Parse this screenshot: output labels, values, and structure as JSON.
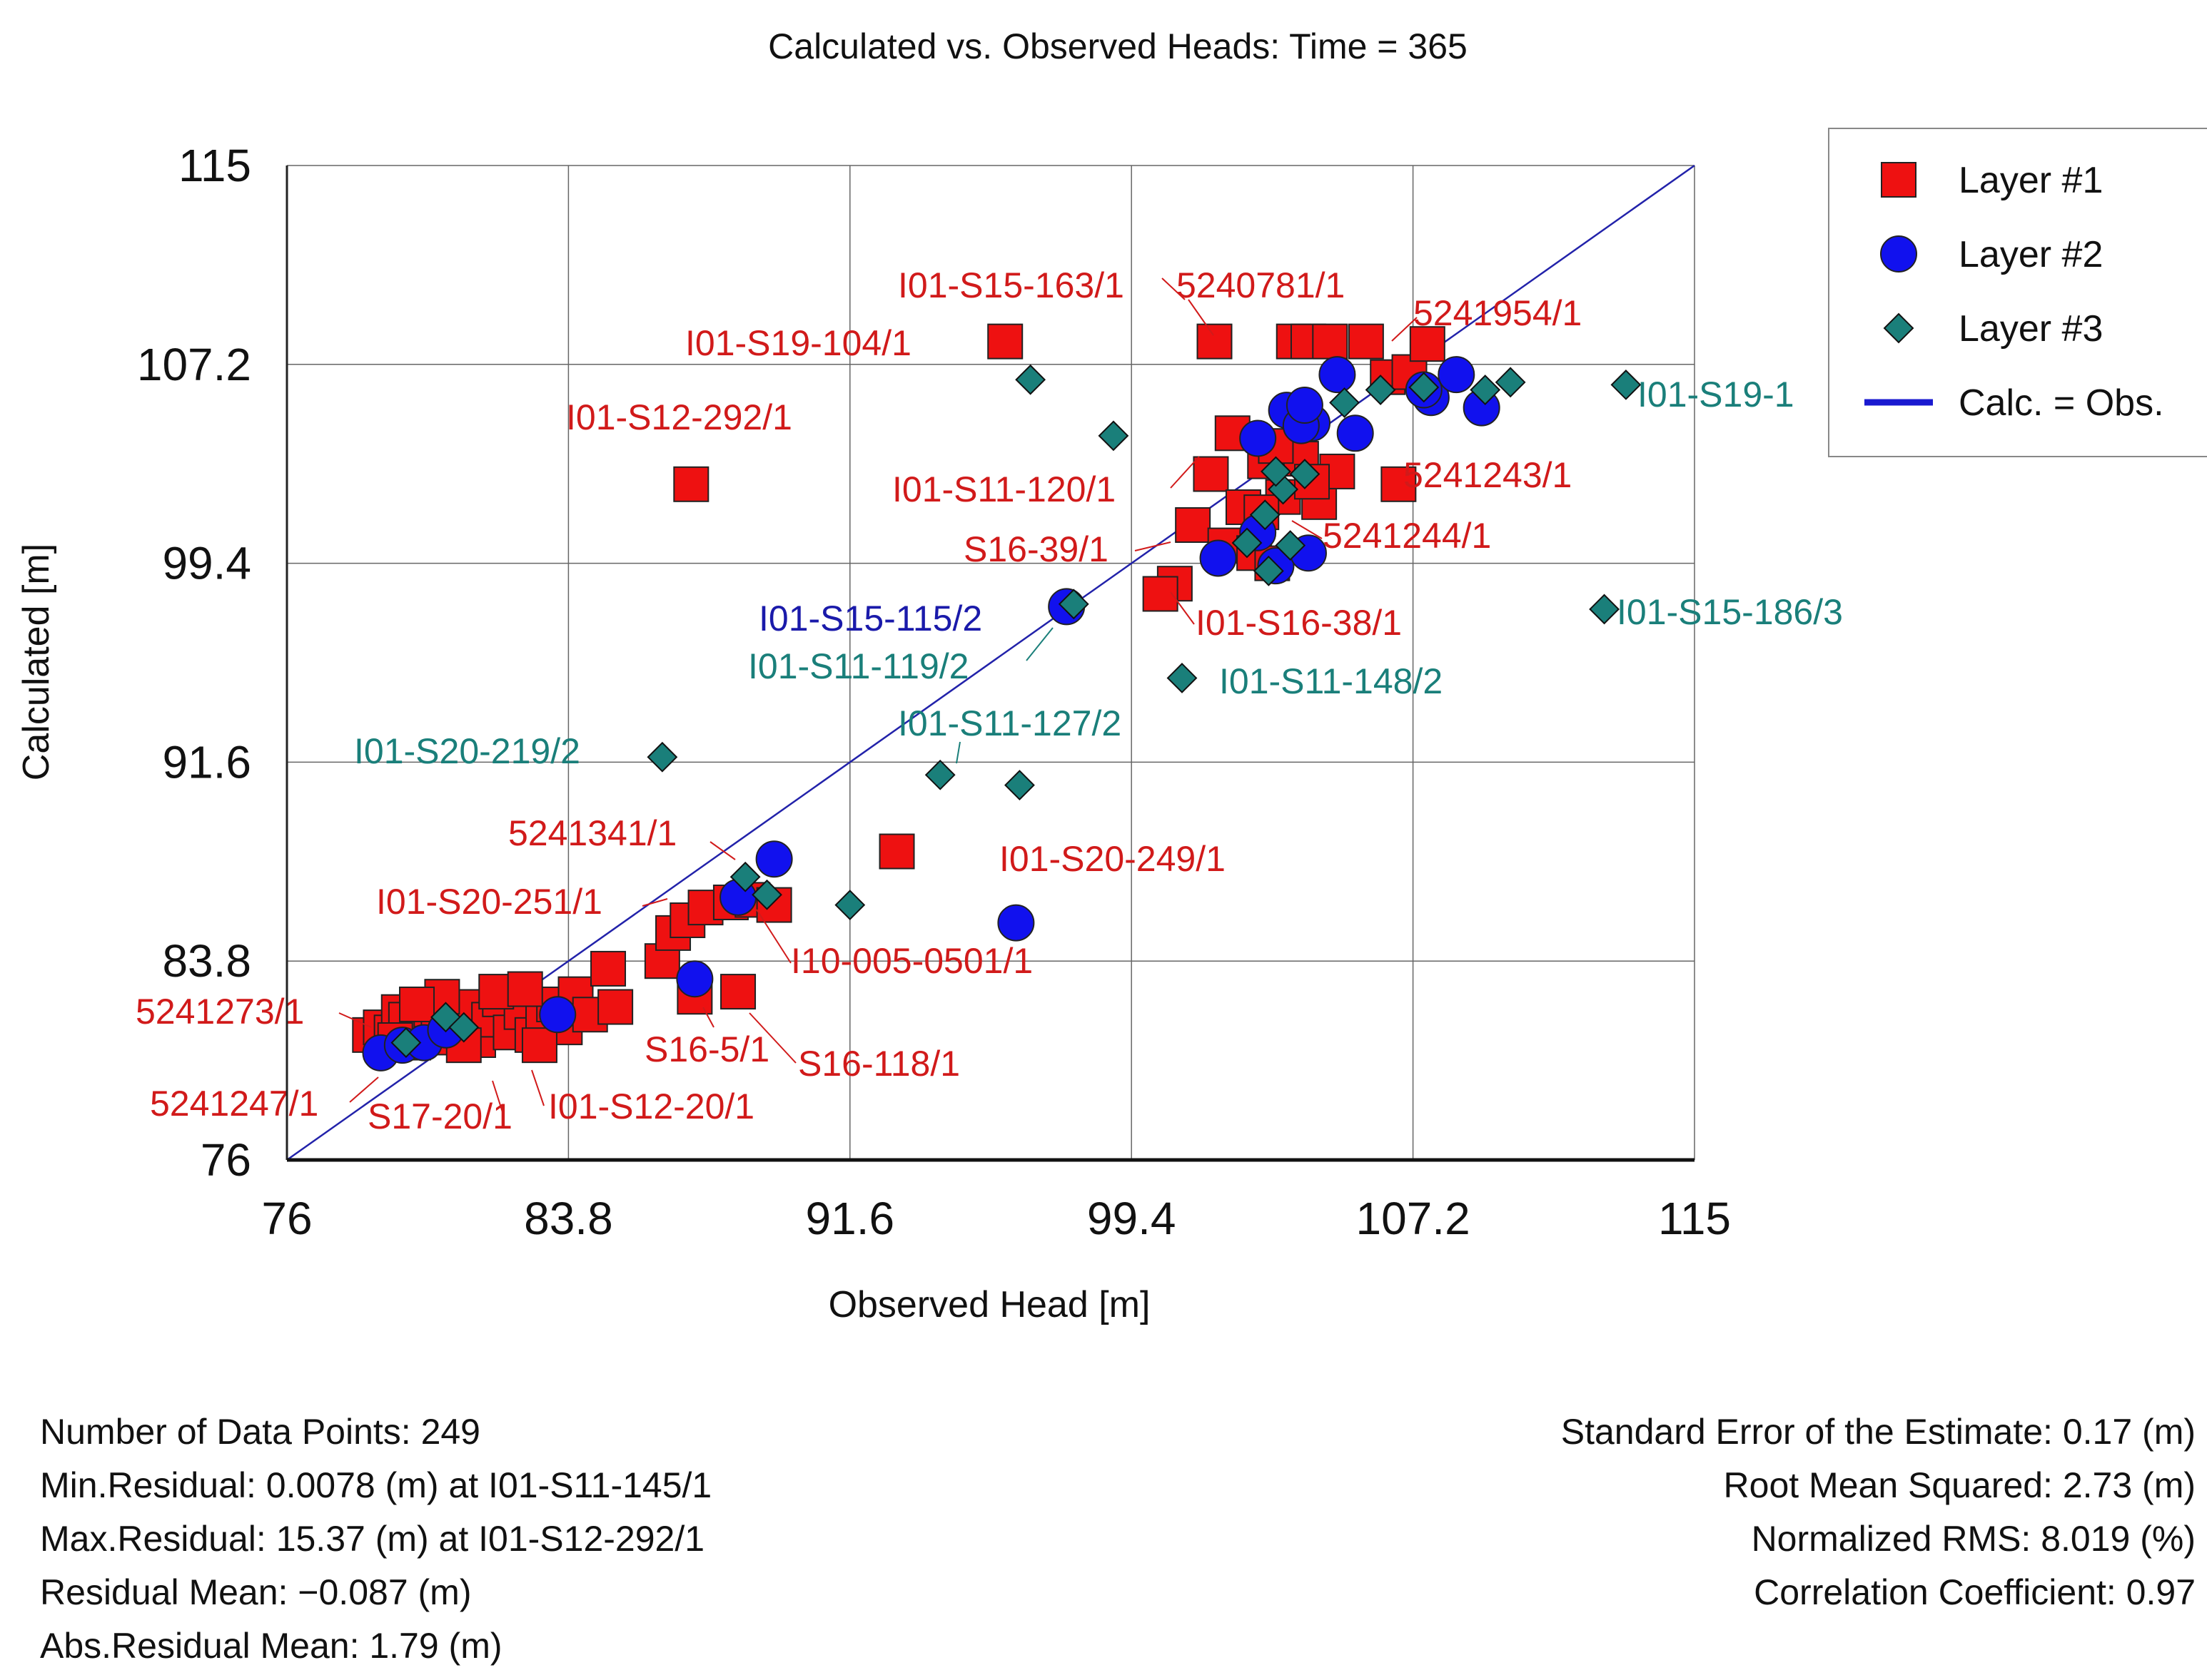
{
  "chart_data": {
    "type": "scatter",
    "title": "Calculated vs. Observed Heads: Time = 365",
    "xlabel": "Observed Head [m]",
    "ylabel": "Calculated [m]",
    "xlim": [
      76,
      115
    ],
    "ylim": [
      76,
      115
    ],
    "ticks": [
      "76",
      "83.8",
      "91.6",
      "99.4",
      "107.2",
      "115"
    ],
    "tick_values": [
      76,
      83.8,
      91.6,
      99.4,
      107.2,
      115
    ],
    "grid": true,
    "legend_position": "top-right",
    "legend": [
      {
        "label": "Layer #1",
        "marker": "square"
      },
      {
        "label": "Layer #2",
        "marker": "circle"
      },
      {
        "label": "Layer #3",
        "marker": "diamond"
      },
      {
        "label": "Calc. = Obs.",
        "marker": "line"
      }
    ],
    "colors": {
      "layer1": "#ee1111",
      "layer2": "#1111ee",
      "layer3": "#1a7f7a",
      "line": "#2222aa",
      "label1": "#d11a1a",
      "label2": "#1a1aaa",
      "label3": "#1a7f7a"
    },
    "series": [
      {
        "name": "Layer #1",
        "marker": "square",
        "points": [
          [
            78.3,
            80.9
          ],
          [
            78.6,
            81.2
          ],
          [
            78.9,
            81.0
          ],
          [
            79.1,
            81.8
          ],
          [
            79.3,
            81.5
          ],
          [
            79.5,
            80.6
          ],
          [
            79.8,
            81.3
          ],
          [
            80.0,
            81.9
          ],
          [
            80.2,
            80.8
          ],
          [
            80.5,
            81.6
          ],
          [
            80.8,
            81.1
          ],
          [
            81.0,
            82.0
          ],
          [
            81.3,
            80.7
          ],
          [
            81.6,
            81.5
          ],
          [
            81.9,
            82.3
          ],
          [
            82.2,
            81.0
          ],
          [
            82.5,
            81.8
          ],
          [
            82.8,
            80.9
          ],
          [
            83.1,
            81.6
          ],
          [
            83.4,
            82.1
          ],
          [
            83.7,
            81.2
          ],
          [
            84.0,
            82.5
          ],
          [
            84.4,
            81.7
          ],
          [
            81.8,
            82.6
          ],
          [
            82.6,
            82.7
          ],
          [
            80.3,
            82.4
          ],
          [
            79.0,
            80.7
          ],
          [
            79.6,
            82.1
          ],
          [
            80.9,
            80.5
          ],
          [
            83.0,
            80.5
          ],
          [
            85.1,
            82.0
          ],
          [
            84.9,
            83.5
          ],
          [
            86.4,
            83.8
          ],
          [
            86.7,
            84.9
          ],
          [
            87.1,
            85.4
          ],
          [
            87.6,
            85.9
          ],
          [
            88.3,
            86.1
          ],
          [
            88.9,
            86.2
          ],
          [
            89.5,
            86.0
          ],
          [
            87.3,
            82.4
          ],
          [
            88.5,
            82.6
          ],
          [
            87.2,
            102.5
          ],
          [
            95.9,
            108.1
          ],
          [
            92.9,
            88.1
          ],
          [
            101.1,
            100.9
          ],
          [
            101.6,
            102.9
          ],
          [
            100.6,
            98.6
          ],
          [
            100.2,
            98.2
          ],
          [
            102.5,
            101.6
          ],
          [
            102.0,
            100.1
          ],
          [
            102.8,
            99.8
          ],
          [
            103.1,
            103.4
          ],
          [
            103.6,
            102.0
          ],
          [
            104.1,
            103.5
          ],
          [
            104.6,
            101.8
          ],
          [
            105.1,
            103.0
          ],
          [
            103.3,
            99.4
          ],
          [
            104.4,
            102.6
          ],
          [
            103.0,
            101.4
          ],
          [
            101.7,
            108.1
          ],
          [
            103.9,
            108.1
          ],
          [
            104.3,
            108.1
          ],
          [
            104.9,
            108.1
          ],
          [
            105.9,
            108.1
          ],
          [
            106.5,
            106.7
          ],
          [
            107.1,
            106.9
          ],
          [
            107.6,
            108.0
          ],
          [
            106.8,
            102.5
          ],
          [
            103.4,
            104.0
          ],
          [
            102.2,
            104.5
          ]
        ]
      },
      {
        "name": "Layer #2",
        "marker": "circle",
        "points": [
          [
            78.6,
            80.2
          ],
          [
            79.2,
            80.5
          ],
          [
            79.8,
            80.6
          ],
          [
            80.4,
            81.1
          ],
          [
            83.5,
            81.7
          ],
          [
            87.3,
            83.1
          ],
          [
            88.5,
            86.3
          ],
          [
            89.5,
            87.8
          ],
          [
            96.2,
            85.3
          ],
          [
            97.6,
            97.7
          ],
          [
            101.8,
            99.6
          ],
          [
            102.9,
            100.6
          ],
          [
            103.4,
            99.3
          ],
          [
            104.3,
            99.8
          ],
          [
            102.9,
            104.3
          ],
          [
            103.7,
            105.4
          ],
          [
            104.4,
            104.9
          ],
          [
            105.1,
            106.8
          ],
          [
            105.6,
            104.5
          ],
          [
            104.1,
            104.8
          ],
          [
            104.2,
            105.6
          ],
          [
            107.7,
            105.9
          ],
          [
            108.4,
            106.8
          ],
          [
            109.1,
            105.5
          ],
          [
            107.5,
            106.2
          ]
        ]
      },
      {
        "name": "Layer #3",
        "marker": "diamond",
        "points": [
          [
            79.3,
            80.6
          ],
          [
            80.4,
            81.6
          ],
          [
            80.9,
            81.2
          ],
          [
            86.4,
            91.8
          ],
          [
            88.7,
            87.1
          ],
          [
            89.3,
            86.4
          ],
          [
            91.6,
            86.0
          ],
          [
            94.1,
            91.1
          ],
          [
            96.3,
            90.7
          ],
          [
            96.6,
            106.6
          ],
          [
            98.9,
            104.4
          ],
          [
            100.8,
            94.9
          ],
          [
            102.6,
            100.2
          ],
          [
            103.1,
            101.3
          ],
          [
            103.6,
            102.3
          ],
          [
            103.8,
            100.1
          ],
          [
            104.2,
            102.9
          ],
          [
            103.2,
            99.1
          ],
          [
            103.4,
            103.0
          ],
          [
            105.3,
            105.7
          ],
          [
            106.3,
            106.2
          ],
          [
            107.5,
            106.3
          ],
          [
            109.2,
            106.2
          ],
          [
            109.9,
            106.5
          ],
          [
            112.5,
            97.6
          ],
          [
            113.1,
            106.4
          ],
          [
            97.8,
            97.8
          ]
        ]
      }
    ],
    "annotations": [
      {
        "text": "I01-S15-163/1",
        "layer": 1
      },
      {
        "text": "5240781/1",
        "layer": 1
      },
      {
        "text": "5241954/1",
        "layer": 1
      },
      {
        "text": "I01-S19-104/1",
        "layer": 1
      },
      {
        "text": "I01-S12-292/1",
        "layer": 1
      },
      {
        "text": "I01-S11-120/1",
        "layer": 1
      },
      {
        "text": "5241243/1",
        "layer": 1
      },
      {
        "text": "S16-39/1",
        "layer": 1
      },
      {
        "text": "5241244/1",
        "layer": 1
      },
      {
        "text": "I01-S16-38/1",
        "layer": 1
      },
      {
        "text": "5241341/1",
        "layer": 1
      },
      {
        "text": "I01-S20-249/1",
        "layer": 1
      },
      {
        "text": "I01-S20-251/1",
        "layer": 1
      },
      {
        "text": "I10-005-0501/1",
        "layer": 1
      },
      {
        "text": "5241273/1",
        "layer": 1
      },
      {
        "text": "S16-5/1",
        "layer": 1
      },
      {
        "text": "S16-118/1",
        "layer": 1
      },
      {
        "text": "5241247/1",
        "layer": 1
      },
      {
        "text": "S17-20/1",
        "layer": 1
      },
      {
        "text": "I01-S12-20/1",
        "layer": 1
      },
      {
        "text": "I01-S15-115/2",
        "layer": 2
      },
      {
        "text": "I01-S11-119/2",
        "layer": 3
      },
      {
        "text": "I01-S11-148/2",
        "layer": 3
      },
      {
        "text": "I01-S11-127/2",
        "layer": 3
      },
      {
        "text": "I01-S20-219/2",
        "layer": 3
      },
      {
        "text": "I01-S15-186/3",
        "layer": 3
      },
      {
        "text": "I01-S19-1",
        "layer": 3
      }
    ]
  },
  "stats": {
    "num_points": "Number of Data Points: 249",
    "min_residual": "Min.Residual: 0.0078 (m) at I01-S11-145/1",
    "max_residual": "Max.Residual: 15.37 (m) at I01-S12-292/1",
    "residual_mean": "Residual Mean: −0.087 (m)",
    "abs_residual_mean": "Abs.Residual Mean: 1.79 (m)",
    "std_error": "Standard Error of the Estimate: 0.17 (m)",
    "rms": "Root Mean Squared: 2.73 (m)",
    "normalized_rms": "Normalized RMS: 8.019 (%)",
    "correlation": "Correlation Coefficient: 0.97"
  }
}
